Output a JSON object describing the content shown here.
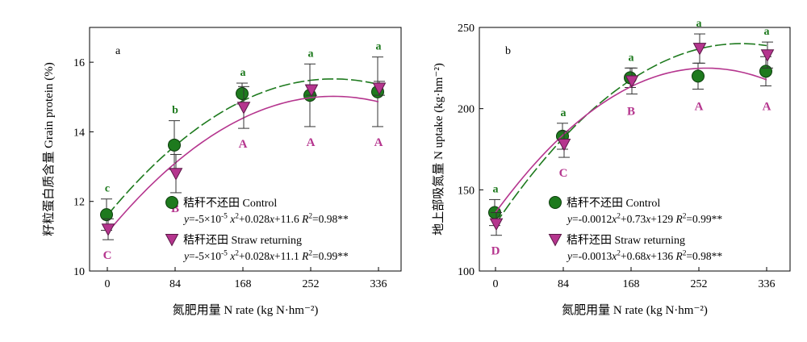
{
  "colors": {
    "control": "#1e7a1e",
    "straw": "#b5358e",
    "axis": "#000000",
    "errorbar": "#333333"
  },
  "legend_labels": {
    "control": "秸秆不还田 Control",
    "straw": "秸秆还田 Straw returning"
  },
  "chart_data": [
    {
      "type": "scatter",
      "panel": "a",
      "xlabel": "氮肥用量 N rate (kg N·hm⁻²)",
      "ylabel": "籽粒蛋白质含量 Grain protein (%)",
      "x_ticks": [
        0,
        84,
        168,
        252,
        336
      ],
      "y_ticks": [
        10,
        12,
        14,
        16
      ],
      "ylim": [
        10,
        17
      ],
      "series": [
        {
          "name": "秸秆不还田 Control",
          "marker": "circle",
          "x": [
            0,
            84,
            168,
            252,
            336
          ],
          "values": [
            11.62,
            13.62,
            15.1,
            15.05,
            15.15
          ],
          "errors": [
            0.45,
            0.7,
            0.3,
            0.9,
            1.0
          ],
          "letters": [
            "c",
            "b",
            "a",
            "a",
            "a"
          ],
          "equation": "y=-5×10-5 x2+0.028x+11.6 R2=0.98**",
          "fit": {
            "a": -5e-05,
            "b": 0.028,
            "c": 11.6
          }
        },
        {
          "name": "秸秆还田 Straw returning",
          "marker": "triangle-down",
          "x": [
            0,
            84,
            168,
            252,
            336
          ],
          "values": [
            11.2,
            12.8,
            14.7,
            15.2,
            15.25
          ],
          "errors": [
            0.3,
            0.55,
            0.6,
            0.15,
            0.2
          ],
          "letters": [
            "C",
            "B",
            "A",
            "A",
            "A"
          ],
          "equation": "y=-5×10-5 x2+0.028x+11.1 R2=0.99**",
          "fit": {
            "a": -5e-05,
            "b": 0.028,
            "c": 11.1
          }
        }
      ]
    },
    {
      "type": "scatter",
      "panel": "b",
      "xlabel": "氮肥用量 N rate (kg N·hm⁻²)",
      "ylabel": "地上部吸氮量 N uptake (kg·hm⁻²)",
      "x_ticks": [
        0,
        84,
        168,
        252,
        336
      ],
      "y_ticks": [
        100,
        150,
        200,
        250
      ],
      "ylim": [
        100,
        250
      ],
      "series": [
        {
          "name": "秸秆不还田 Control",
          "marker": "circle",
          "x": [
            0,
            84,
            168,
            252,
            336
          ],
          "values": [
            136,
            183,
            219,
            220,
            223
          ],
          "errors": [
            8,
            8,
            6,
            8,
            9
          ],
          "letters": [
            "a",
            "a",
            "a",
            "a",
            "a"
          ],
          "equation": "y=-0.0012x2+0.73x+129 R2=0.99**",
          "fit": {
            "a": -0.0012,
            "b": 0.73,
            "c": 129
          }
        },
        {
          "name": "秸秆还田 Straw returning",
          "marker": "triangle-down",
          "x": [
            0,
            84,
            168,
            252,
            336
          ],
          "values": [
            129,
            178,
            217,
            237,
            233
          ],
          "errors": [
            7,
            8,
            8,
            9,
            8
          ],
          "letters": [
            "D",
            "C",
            "B",
            "A",
            "A"
          ],
          "equation": "y=-0.0013x2+0.68x+136 R2=0.98**",
          "fit": {
            "a": -0.0013,
            "b": 0.68,
            "c": 136
          }
        }
      ]
    }
  ]
}
